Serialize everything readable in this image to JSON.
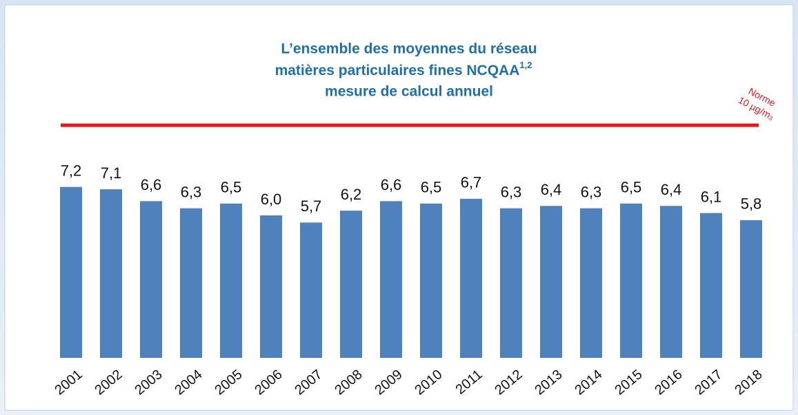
{
  "chart_data": {
    "type": "bar",
    "title": [
      "L’ensemble des moyennes du réseau",
      "matières particulaires fines NCQAA",
      "mesure de calcul annuel"
    ],
    "title_superscript": "1,2",
    "categories": [
      "2001",
      "2002",
      "2003",
      "2004",
      "2005",
      "2006",
      "2007",
      "2008",
      "2009",
      "2010",
      "2011",
      "2012",
      "2013",
      "2014",
      "2015",
      "2016",
      "2017",
      "2018"
    ],
    "values": [
      7.2,
      7.1,
      6.6,
      6.3,
      6.5,
      6.0,
      5.7,
      6.2,
      6.6,
      6.5,
      6.7,
      6.3,
      6.4,
      6.3,
      6.5,
      6.4,
      6.1,
      5.8
    ],
    "value_labels": [
      "7,2",
      "7,1",
      "6,6",
      "6,3",
      "6,5",
      "6,0",
      "5,7",
      "6,2",
      "6,6",
      "6,5",
      "6,7",
      "6,3",
      "6,4",
      "6,3",
      "6,5",
      "6,4",
      "6,1",
      "5,8"
    ],
    "color": "#4f81bd",
    "norm": {
      "value": 10,
      "label": [
        "Norme",
        "10 µg/m"
      ],
      "superscript": "3",
      "color": "#e8161b"
    }
  }
}
